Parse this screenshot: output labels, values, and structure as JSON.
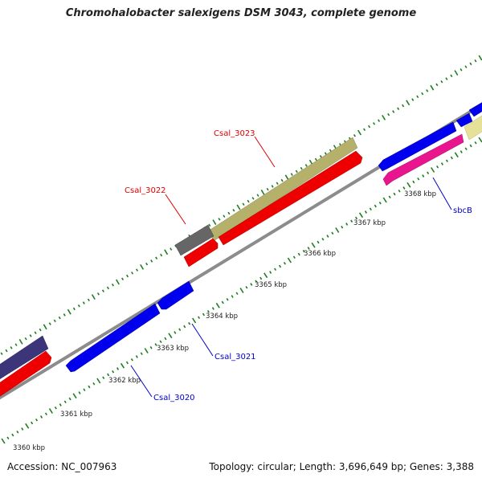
{
  "title": "Chromohalobacter salexigens DSM 3043, complete genome",
  "accession_label": "Accession: NC_007963",
  "topology_label": "Topology: circular; Length: 3,696,649 bp; Genes: 3,388",
  "colors": {
    "backbone": "#8c8c8c",
    "tick": "#1e7d1e",
    "forward_label": "#dd0000",
    "reverse_label": "#0000cc",
    "khaki": "#b5b06a",
    "red": "#ee0000",
    "gray": "#666666",
    "blue": "#0000ee",
    "magenta": "#e8158f",
    "navy": "#3c3579",
    "pale_yellow": "#e6e098"
  },
  "position_labels": [
    "3360 kbp",
    "3361 kbp",
    "3362 kbp",
    "3363 kbp",
    "3364 kbp",
    "3365 kbp",
    "3366 kbp",
    "3367 kbp",
    "3368 kbp"
  ],
  "gene_labels": [
    {
      "text": "Csal_3023",
      "strand": "forward"
    },
    {
      "text": "Csal_3022",
      "strand": "forward"
    },
    {
      "text": "sbcB",
      "strand": "reverse"
    },
    {
      "text": "Csal_3021",
      "strand": "reverse"
    },
    {
      "text": "Csal_3020",
      "strand": "reverse"
    }
  ]
}
